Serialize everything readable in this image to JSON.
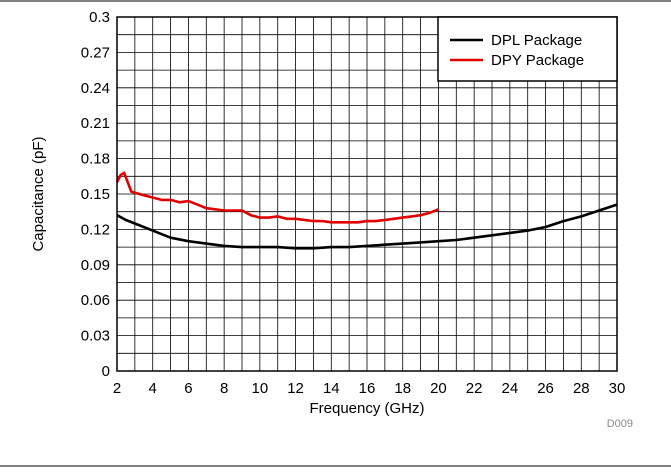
{
  "chart_data": {
    "type": "line",
    "xlabel": "Frequency (GHz)",
    "ylabel": "Capacitance (pF)",
    "xlim": [
      2,
      30
    ],
    "ylim": [
      0,
      0.3
    ],
    "x_ticks": [
      "2",
      "4",
      "6",
      "8",
      "10",
      "12",
      "14",
      "16",
      "18",
      "20",
      "22",
      "24",
      "26",
      "28",
      "30"
    ],
    "y_ticks": [
      "0",
      "0.03",
      "0.06",
      "0.09",
      "0.12",
      "0.15",
      "0.18",
      "0.21",
      "0.24",
      "0.27",
      "0.3"
    ],
    "grid": true,
    "legend_position": "top-right",
    "series": [
      {
        "name": "DPL Package",
        "color": "#000000",
        "x": [
          2.0,
          2.5,
          3.0,
          4.0,
          5.0,
          6.0,
          7.0,
          8.0,
          9.0,
          10.0,
          11.0,
          12.0,
          13.0,
          14.0,
          15.0,
          16.0,
          17.0,
          18.0,
          19.0,
          20.0,
          21.0,
          22.0,
          23.0,
          24.0,
          25.0,
          26.0,
          27.0,
          28.0,
          29.0,
          30.0
        ],
        "values": [
          0.132,
          0.128,
          0.125,
          0.119,
          0.113,
          0.11,
          0.108,
          0.106,
          0.105,
          0.105,
          0.105,
          0.104,
          0.104,
          0.105,
          0.105,
          0.106,
          0.107,
          0.108,
          0.109,
          0.11,
          0.111,
          0.113,
          0.115,
          0.117,
          0.119,
          0.122,
          0.127,
          0.131,
          0.136,
          0.141
        ]
      },
      {
        "name": "DPY Package",
        "color": "#e00000",
        "x": [
          2.0,
          2.2,
          2.4,
          2.6,
          2.8,
          3.0,
          3.5,
          4.0,
          4.5,
          5.0,
          5.5,
          6.0,
          6.5,
          7.0,
          7.5,
          8.0,
          8.5,
          9.0,
          9.5,
          10.0,
          10.5,
          11.0,
          11.5,
          12.0,
          12.5,
          13.0,
          13.5,
          14.0,
          14.5,
          15.0,
          15.5,
          16.0,
          16.5,
          17.0,
          17.5,
          18.0,
          18.5,
          19.0,
          19.5,
          20.0
        ],
        "values": [
          0.16,
          0.166,
          0.168,
          0.16,
          0.152,
          0.151,
          0.149,
          0.147,
          0.145,
          0.145,
          0.143,
          0.144,
          0.141,
          0.138,
          0.137,
          0.136,
          0.136,
          0.136,
          0.132,
          0.13,
          0.13,
          0.131,
          0.129,
          0.129,
          0.128,
          0.127,
          0.127,
          0.126,
          0.126,
          0.126,
          0.126,
          0.127,
          0.127,
          0.128,
          0.129,
          0.13,
          0.131,
          0.132,
          0.134,
          0.137
        ]
      }
    ],
    "annotations": [
      "D009"
    ]
  }
}
